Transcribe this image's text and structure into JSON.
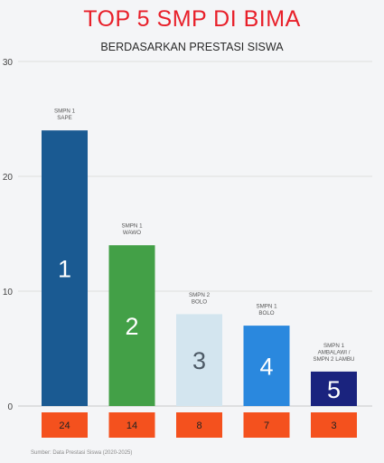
{
  "chart_data": {
    "type": "bar",
    "title": "TOP 5 SMP DI BIMA",
    "subtitle": "BERDASARKAN PRESTASI SISWA",
    "categories": [
      "SMPN 1 SAPE",
      "SMPN 1 WAWO",
      "SMPN 2 BOLO",
      "SMPN 1 BOLO",
      "SMPN 1 AMBALAWI / SMPN 2 LAMBU"
    ],
    "category_label_lines": [
      [
        "SMPN 1",
        "SAPE"
      ],
      [
        "SMPN 1",
        "WAWO"
      ],
      [
        "SMPN 2",
        "BOLO"
      ],
      [
        "SMPN 1",
        "BOLO"
      ],
      [
        "SMPN 1",
        "AMBALAWI /",
        "SMPN 2 LAMBU"
      ]
    ],
    "ranks": [
      "1",
      "2",
      "3",
      "4",
      "5"
    ],
    "values": [
      24,
      14,
      8,
      7,
      3
    ],
    "value_labels": [
      "24",
      "14",
      "8",
      "7",
      "3"
    ],
    "bar_colors": [
      "#1a5a92",
      "#43a047",
      "#d3e5ef",
      "#2a88de",
      "#1a237e"
    ],
    "rank_label_colors": [
      "#ffffff",
      "#ffffff",
      "#4d5a66",
      "#ffffff",
      "#ffffff"
    ],
    "value_box_color": "#f4511e",
    "yticks": [
      "0",
      "10",
      "20",
      "30"
    ],
    "ytick_values": [
      0,
      10,
      20,
      30
    ],
    "ylim": [
      0,
      30
    ],
    "grid": true,
    "xlabel": "",
    "ylabel": ""
  },
  "source": "Sumber: Data Prestasi Siswa (2020-2025)"
}
